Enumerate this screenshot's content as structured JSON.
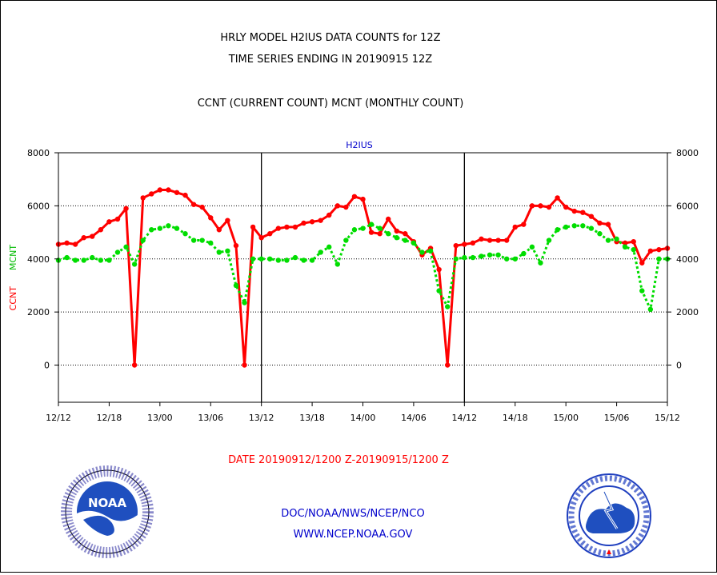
{
  "header": {
    "title_line1": "HRLY MODEL H2IUS DATA COUNTS for 12Z",
    "title_line2": "TIME SERIES ENDING IN 20190915 12Z",
    "subtitle": "CCNT (CURRENT COUNT) MCNT (MONTHLY COUNT)"
  },
  "footer": {
    "date_range": "DATE 20190912/1200 Z-20190915/1200 Z",
    "org": "DOC/NOAA/NWS/NCEP/NCO",
    "url": "WWW.NCEP.NOAA.GOV"
  },
  "logos": {
    "left": {
      "text": "NOAA",
      "icon": "noaa-logo-icon"
    },
    "right": {
      "icon": "nws-logo-icon"
    }
  },
  "chart_data": {
    "type": "line",
    "title": "H2IUS",
    "ylabel_left": [
      "CCNT",
      "MCNT"
    ],
    "ylim": [
      -1400,
      8000
    ],
    "xlim": [
      0,
      72
    ],
    "yticks": [
      0,
      2000,
      4000,
      6000,
      8000
    ],
    "xticks": [
      0,
      6,
      12,
      18,
      24,
      30,
      36,
      42,
      48,
      54,
      60,
      66,
      72
    ],
    "xtick_labels": [
      "12/12",
      "12/18",
      "13/00",
      "13/06",
      "13/12",
      "13/18",
      "14/00",
      "14/06",
      "14/12",
      "14/18",
      "15/00",
      "15/06",
      "15/12"
    ],
    "day_dividers": [
      24,
      48
    ],
    "grid": "dotted horizontal at y ticks",
    "colors": {
      "ccnt": "#ff0000",
      "mcnt": "#00dd00",
      "text": "#000000",
      "title": "#0000cc",
      "footer_red": "#ff0000",
      "footer_blue": "#0000cc"
    },
    "series": [
      {
        "id": "ccnt",
        "style": "solid",
        "values": [
          4550,
          4600,
          4550,
          4800,
          4850,
          5100,
          5400,
          5500,
          5900,
          0,
          6300,
          6450,
          6600,
          6600,
          6500,
          6400,
          6050,
          5950,
          5550,
          5100,
          5450,
          4500,
          0,
          5200,
          4800,
          4950,
          5150,
          5200,
          5200,
          5350,
          5400,
          5450,
          5650,
          6000,
          5950,
          6350,
          6250,
          5000,
          4950,
          5500,
          5050,
          4950,
          4650,
          4150,
          4400,
          3600,
          0,
          4500,
          4550,
          4600,
          4750,
          4700,
          4700,
          4700,
          5200,
          5300,
          6000,
          6000,
          5950,
          6300,
          5950,
          5800,
          5750,
          5600,
          5350,
          5300,
          4650,
          4600,
          4650,
          3850,
          4300,
          4350,
          4400
        ]
      },
      {
        "id": "mcnt",
        "style": "dotted",
        "values": [
          3950,
          4050,
          3950,
          3950,
          4050,
          3950,
          3950,
          4250,
          4450,
          3800,
          4700,
          5100,
          5150,
          5250,
          5150,
          4950,
          4700,
          4700,
          4600,
          4250,
          4300,
          3000,
          2350,
          4000,
          4000,
          4000,
          3950,
          3950,
          4050,
          3950,
          3950,
          4250,
          4450,
          3800,
          4700,
          5100,
          5150,
          5300,
          5150,
          4950,
          4800,
          4700,
          4600,
          4250,
          4300,
          2800,
          2200,
          4000,
          4050,
          4050,
          4100,
          4150,
          4150,
          4000,
          4000,
          4200,
          4450,
          3850,
          4700,
          5100,
          5200,
          5250,
          5250,
          5150,
          4950,
          4700,
          4750,
          4450,
          4350,
          2800,
          2100,
          4000,
          4000
        ]
      }
    ]
  }
}
